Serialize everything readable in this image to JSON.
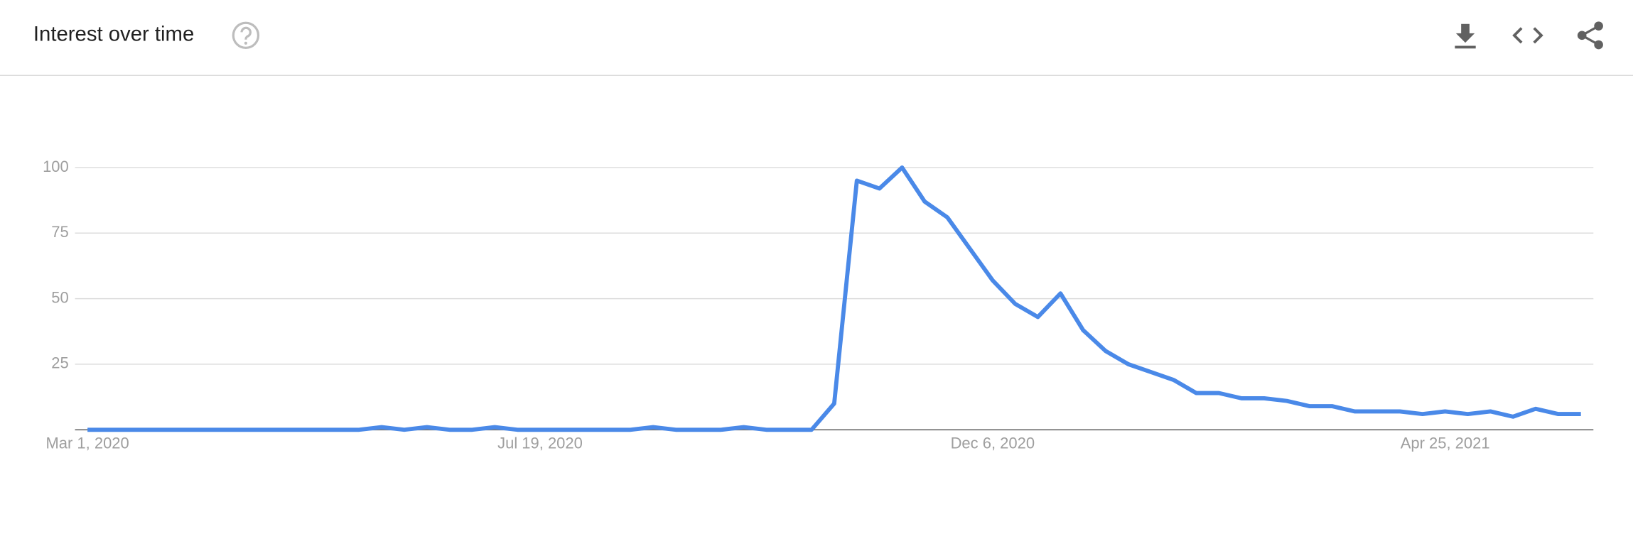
{
  "header": {
    "title": "Interest over time"
  },
  "chart_data": {
    "type": "line",
    "categories": [
      "Mar 1, 2020",
      null,
      null,
      null,
      null,
      null,
      null,
      null,
      null,
      null,
      null,
      null,
      null,
      null,
      null,
      null,
      null,
      null,
      null,
      null,
      "Jul 19, 2020",
      null,
      null,
      null,
      null,
      null,
      null,
      null,
      null,
      null,
      null,
      null,
      null,
      null,
      null,
      null,
      null,
      null,
      null,
      null,
      "Dec 6, 2020",
      null,
      null,
      null,
      null,
      null,
      null,
      null,
      null,
      null,
      null,
      null,
      null,
      null,
      null,
      null,
      null,
      null,
      null,
      null,
      "Apr 25, 2021",
      null,
      null,
      null,
      null,
      null,
      null
    ],
    "values": [
      0,
      0,
      0,
      0,
      0,
      0,
      0,
      0,
      0,
      0,
      0,
      0,
      0,
      1,
      0,
      1,
      0,
      0,
      1,
      0,
      0,
      0,
      0,
      0,
      0,
      1,
      0,
      0,
      0,
      1,
      0,
      0,
      0,
      10,
      95,
      92,
      100,
      87,
      81,
      69,
      57,
      48,
      43,
      52,
      38,
      30,
      25,
      22,
      19,
      14,
      14,
      12,
      12,
      11,
      9,
      9,
      7,
      7,
      7,
      6,
      7,
      6,
      7,
      5,
      8,
      6,
      6
    ],
    "color": "#4a89e8",
    "ylim": [
      0,
      100
    ],
    "yticks": [
      25,
      50,
      75,
      100
    ],
    "grid": true
  }
}
